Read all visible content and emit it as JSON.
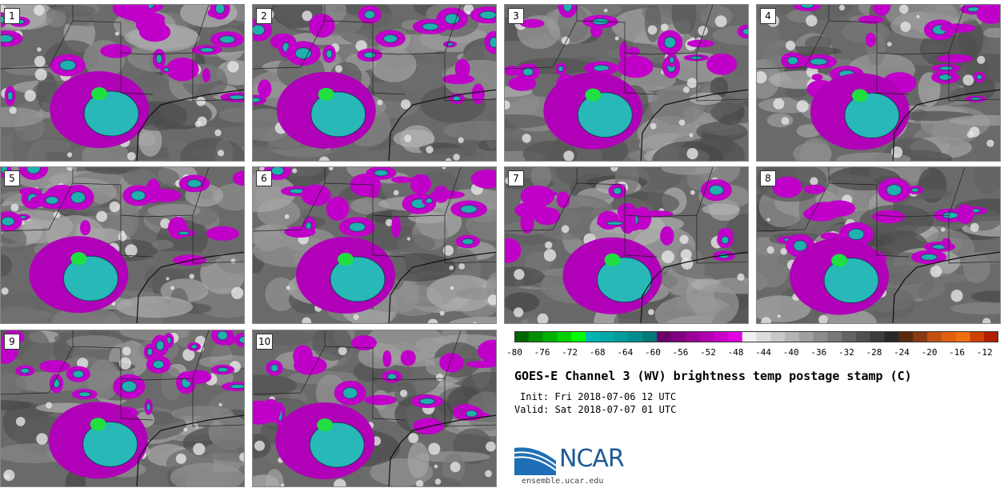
{
  "panels": [
    {
      "label": "1"
    },
    {
      "label": "2"
    },
    {
      "label": "3"
    },
    {
      "label": "4"
    },
    {
      "label": "5"
    },
    {
      "label": "6"
    },
    {
      "label": "7"
    },
    {
      "label": "8"
    },
    {
      "label": "9"
    },
    {
      "label": "10"
    }
  ],
  "colorbar": {
    "tick_labels": [
      "-80",
      "-76",
      "-72",
      "-68",
      "-64",
      "-60",
      "-56",
      "-52",
      "-48",
      "-44",
      "-40",
      "-36",
      "-32",
      "-28",
      "-24",
      "-20",
      "-16",
      "-12"
    ],
    "range": [
      -80,
      -10
    ],
    "colors": [
      "#006400",
      "#009000",
      "#00b000",
      "#00d000",
      "#00ff00",
      "#00b4b4",
      "#00a8a8",
      "#009c9c",
      "#008c8c",
      "#007878",
      "#6a006a",
      "#800080",
      "#980098",
      "#b000b0",
      "#c800c8",
      "#e000e0",
      "#f0f0f0",
      "#dcdcdc",
      "#c8c8c8",
      "#b4b4b4",
      "#a0a0a0",
      "#8c8c8c",
      "#787878",
      "#646464",
      "#505050",
      "#3c3c3c",
      "#282828",
      "#5a2a10",
      "#8a3a10",
      "#c05010",
      "#e06010",
      "#f07010",
      "#d04000",
      "#b02000"
    ]
  },
  "title": "GOES-E Channel 3 (WV) brightness temp postage stamp (C)",
  "init": "Init: Fri 2018-07-06 12 UTC",
  "valid": "Valid: Sat 2018-07-07 01 UTC",
  "logo": {
    "text": "NCAR",
    "site": "ensemble.ucar.edu"
  }
}
